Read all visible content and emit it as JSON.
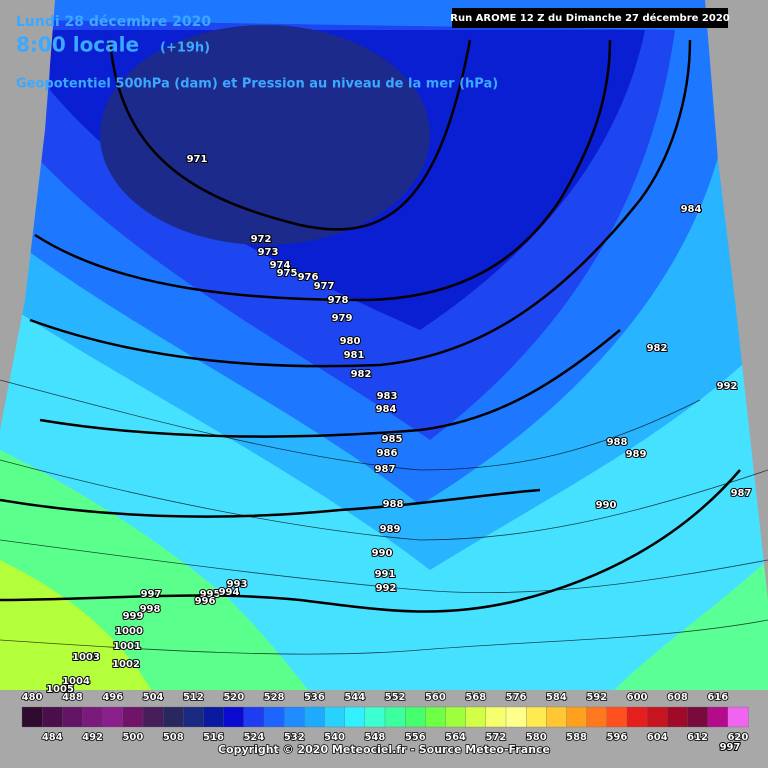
{
  "header": {
    "date": "Lundi 28 décembre 2020",
    "time": "8:00 locale",
    "lead": "(+19h)",
    "run": "Run AROME 12 Z du Dimanche 27 décembre 2020",
    "subtitle": "Geopotentiel 500hPa (dam) et Pression au niveau de la mer (hPa)"
  },
  "pressure_labels": [
    971,
    972,
    973,
    974,
    975,
    976,
    977,
    978,
    979,
    980,
    981,
    982,
    983,
    984,
    985,
    986,
    987,
    988,
    989,
    990,
    991,
    992,
    984,
    982,
    992,
    988,
    989,
    990,
    987,
    993,
    997,
    998,
    999,
    995,
    994,
    996,
    1000,
    1001,
    1002,
    1003,
    1004,
    1005,
    997
  ],
  "legend": {
    "top_labels": [
      480,
      488,
      496,
      504,
      512,
      520,
      528,
      536,
      544,
      552,
      560,
      568,
      576,
      584,
      592,
      600,
      608,
      616
    ],
    "bottom_labels": [
      484,
      492,
      500,
      508,
      516,
      524,
      532,
      540,
      548,
      556,
      564,
      572,
      580,
      588,
      596,
      604,
      612,
      620
    ],
    "colors": [
      "#2e0a2e",
      "#4a0e4a",
      "#641464",
      "#7a1a7a",
      "#8a1e8a",
      "#70146a",
      "#461e5a",
      "#28285e",
      "#1a2a80",
      "#0a1aa0",
      "#0a0ad0",
      "#1e3cf0",
      "#1e64ff",
      "#1e8cff",
      "#1eaaff",
      "#28d2ff",
      "#32f0ff",
      "#3cffd2",
      "#3cffa0",
      "#46ff6e",
      "#6eff46",
      "#a0ff3c",
      "#d2ff46",
      "#f5ff6e",
      "#ffff8c",
      "#ffeb50",
      "#ffc832",
      "#ffa01e",
      "#ff781e",
      "#ff501e",
      "#e61e1e",
      "#c8141e",
      "#a00a28",
      "#780a3c",
      "#b40a8c",
      "#f064f0"
    ]
  },
  "footer": {
    "copyright": "Copyright © 2020 Meteociel.fr - Source Meteo-France"
  }
}
